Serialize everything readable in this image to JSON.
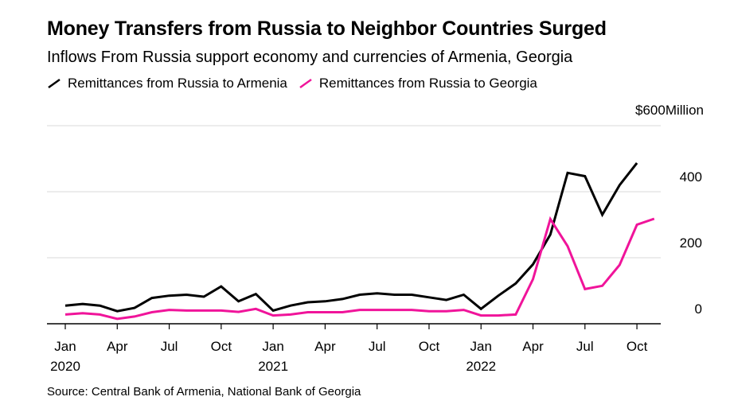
{
  "header": {
    "title": "Money Transfers from Russia to Neighbor Countries Surged",
    "subtitle": "Inflows From Russia support economy and currencies of Armenia, Georgia"
  },
  "footer": {
    "source": "Source: Central Bank of Armenia, National Bank of Georgia"
  },
  "chart_data": {
    "type": "line",
    "title": "Money Transfers from Russia to Neighbor Countries Surged",
    "subtitle": "Inflows From Russia support economy and currencies of Armenia, Georgia",
    "y_unit_label": "$600Million",
    "y_ticks": [
      {
        "value": 600,
        "label": "$600"
      },
      {
        "value": 400,
        "label": "400"
      },
      {
        "value": 200,
        "label": "200"
      },
      {
        "value": 0,
        "label": "0"
      }
    ],
    "ylim": [
      0,
      600
    ],
    "x_ticks": [
      {
        "index": 0,
        "month": "Jan",
        "year": "2020"
      },
      {
        "index": 3,
        "month": "Apr",
        "year": ""
      },
      {
        "index": 6,
        "month": "Jul",
        "year": ""
      },
      {
        "index": 9,
        "month": "Oct",
        "year": ""
      },
      {
        "index": 12,
        "month": "Jan",
        "year": "2021"
      },
      {
        "index": 15,
        "month": "Apr",
        "year": ""
      },
      {
        "index": 18,
        "month": "Jul",
        "year": ""
      },
      {
        "index": 21,
        "month": "Oct",
        "year": ""
      },
      {
        "index": 24,
        "month": "Jan",
        "year": "2022"
      },
      {
        "index": 27,
        "month": "Apr",
        "year": ""
      },
      {
        "index": 30,
        "month": "Jul",
        "year": ""
      },
      {
        "index": 33,
        "month": "Oct",
        "year": ""
      }
    ],
    "x": [
      "2020-01",
      "2020-02",
      "2020-03",
      "2020-04",
      "2020-05",
      "2020-06",
      "2020-07",
      "2020-08",
      "2020-09",
      "2020-10",
      "2020-11",
      "2020-12",
      "2021-01",
      "2021-02",
      "2021-03",
      "2021-04",
      "2021-05",
      "2021-06",
      "2021-07",
      "2021-08",
      "2021-09",
      "2021-10",
      "2021-11",
      "2021-12",
      "2022-01",
      "2022-02",
      "2022-03",
      "2022-04",
      "2022-05",
      "2022-06",
      "2022-07",
      "2022-08",
      "2022-09",
      "2022-10",
      "2022-11"
    ],
    "series": [
      {
        "name": "Remittances from Russia to Armenia",
        "color": "#000000",
        "values": [
          55,
          60,
          55,
          38,
          48,
          78,
          85,
          88,
          82,
          113,
          68,
          90,
          40,
          55,
          65,
          68,
          75,
          88,
          92,
          88,
          88,
          80,
          72,
          88,
          45,
          85,
          122,
          180,
          270,
          457,
          447,
          330,
          420,
          487,
          null
        ]
      },
      {
        "name": "Remittances from Russia to Georgia",
        "color": "#f0149a",
        "values": [
          28,
          32,
          28,
          15,
          22,
          35,
          42,
          40,
          40,
          40,
          36,
          45,
          25,
          28,
          35,
          35,
          35,
          42,
          42,
          42,
          42,
          38,
          38,
          42,
          25,
          25,
          28,
          135,
          317,
          235,
          105,
          115,
          178,
          300,
          318
        ]
      }
    ],
    "grid": true,
    "legend_position": "top-left"
  }
}
